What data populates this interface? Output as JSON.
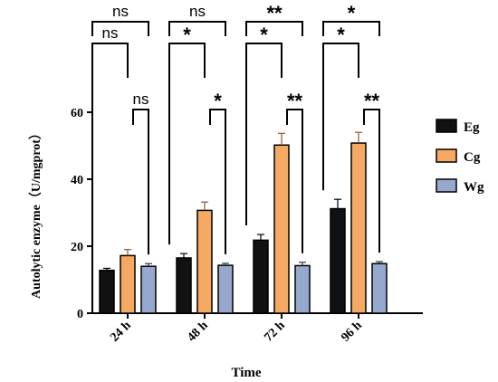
{
  "chart_data": {
    "type": "bar",
    "xlabel": "Time",
    "ylabel": "Autolytic enzyme（U/mgprot）",
    "ylim": [
      0,
      60
    ],
    "yticks": [
      0,
      20,
      40,
      60
    ],
    "categories": [
      "24 h",
      "48 h",
      "72 h",
      "96 h"
    ],
    "series": [
      {
        "name": "Eg",
        "color": "#111111",
        "values": [
          12.8,
          16.5,
          21.8,
          31.2
        ],
        "errors": [
          0.6,
          1.3,
          1.7,
          2.8
        ]
      },
      {
        "name": "Cg",
        "color": "#f5a962",
        "values": [
          17.2,
          30.7,
          50.2,
          50.8
        ],
        "errors": [
          1.8,
          2.5,
          3.5,
          3.2
        ]
      },
      {
        "name": "Wg",
        "color": "#96a9cc",
        "values": [
          14.0,
          14.3,
          14.2,
          14.8
        ],
        "errors": [
          0.8,
          0.6,
          1.0,
          0.6
        ]
      }
    ],
    "significance": [
      {
        "category": "24 h",
        "pairs": [
          {
            "label": "ns"
          },
          {
            "label": "ns"
          },
          {
            "label": "ns"
          }
        ]
      },
      {
        "category": "48 h",
        "pairs": [
          {
            "label": "*"
          },
          {
            "label": "*"
          },
          {
            "label": "ns"
          }
        ]
      },
      {
        "category": "72 h",
        "pairs": [
          {
            "label": "*"
          },
          {
            "label": "**"
          },
          {
            "label": "**"
          }
        ]
      },
      {
        "category": "96 h",
        "pairs": [
          {
            "label": "*"
          },
          {
            "label": "**"
          },
          {
            "label": "*"
          }
        ]
      }
    ],
    "legend_position": "right",
    "grid": false
  }
}
